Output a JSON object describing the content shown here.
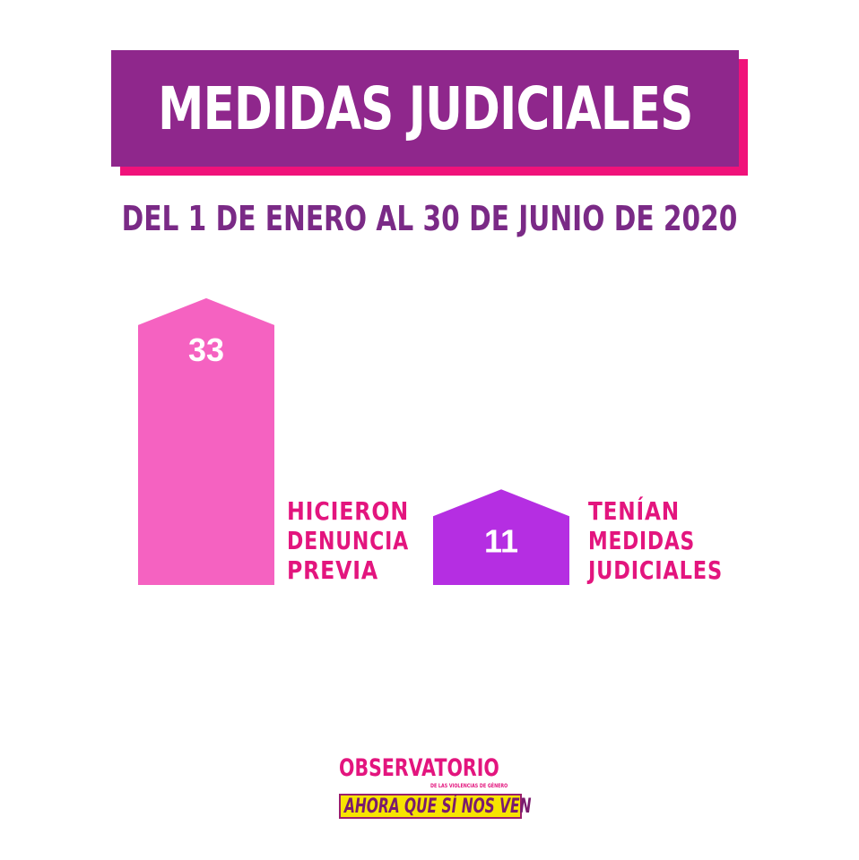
{
  "header": {
    "title": "MEDIDAS JUDICIALES",
    "subtitle": "DEL 1 DE ENERO AL 30 DE JUNIO DE 2020"
  },
  "colors": {
    "title_bg": "#8f278c",
    "title_shadow": "#f0127a",
    "subtitle": "#7a2a86",
    "bar_1": "#f562c1",
    "bar_2": "#b52ee2",
    "category_label": "#e3157e"
  },
  "chart_data": {
    "type": "bar",
    "title": "MEDIDAS JUDICIALES",
    "subtitle": "DEL 1 DE ENERO AL 30 DE JUNIO DE 2020",
    "categories": [
      [
        "HICIERON",
        "DENUNCIA",
        "PREVIA"
      ],
      [
        "TENÍAN",
        "MEDIDAS",
        "JUDICIALES"
      ]
    ],
    "values": [
      33,
      11
    ],
    "value_labels": [
      "33",
      "11"
    ],
    "xlabel": "",
    "ylabel": "",
    "grid": false
  },
  "logo": {
    "name": "OBSERVATORIO",
    "tagline": "DE LAS VIOLENCIAS DE GÉNERO",
    "slogan": "AHORA QUE SÍ NOS VEN"
  }
}
